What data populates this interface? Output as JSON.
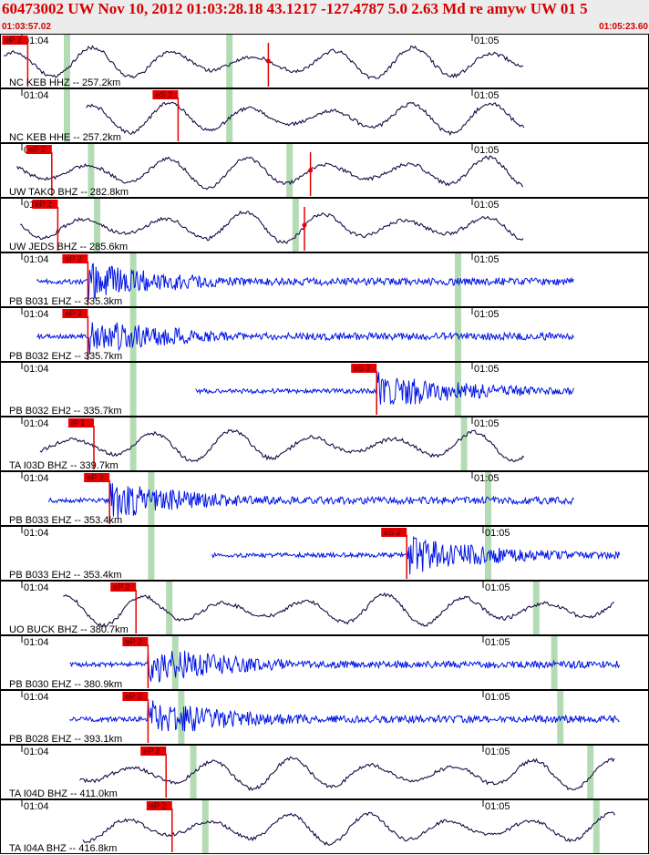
{
  "header": {
    "title": "60473002 UW Nov 10, 2012 01:03:28.18    43.1217 -127.4787  5.0 2.63 Md re amyw UW 01   5",
    "start_time": "01:03:57.02",
    "end_time": "01:05:23.60"
  },
  "colors": {
    "header_text": "#d40000",
    "header_bg": "#ececec",
    "broadband_trace": "#1e0a46",
    "short_period_trace": "#0014e6",
    "pick_flag": "#e60000",
    "theoretical_arrival": "#b4dcb4",
    "panel_border": "#000000"
  },
  "minute_labels": [
    "01:04",
    "01:05"
  ],
  "panels": [
    {
      "label": "NC KEB HHZ -- 257.2km",
      "trace": "broadband",
      "picks": [
        {
          "text": "eP 2",
          "time": 2.0
        },
        {
          "text": "",
          "time": 22.0
        }
      ],
      "markers": [
        5.0,
        18.5
      ]
    },
    {
      "label": "NC KEB HHE -- 257.2km",
      "trace": "broadband",
      "picks": [
        {
          "text": "eS 2",
          "time": 14.5
        }
      ],
      "markers": [
        5.0,
        18.5
      ]
    },
    {
      "label": "UW TAKO BHZ -- 282.8km",
      "trace": "broadband",
      "picks": [
        {
          "text": "eP 2",
          "time": 4.0
        },
        {
          "text": "",
          "time": 25.5
        }
      ],
      "markers": [
        7.0,
        23.5
      ]
    },
    {
      "label": "UW JEDS BHZ -- 285.6km",
      "trace": "broadband",
      "picks": [
        {
          "text": "eP 2",
          "time": 4.5
        },
        {
          "text": "",
          "time": 25.0
        }
      ],
      "markers": [
        7.5,
        24.0
      ]
    },
    {
      "label": "PB B031 EHZ -- 335.3km",
      "trace": "short",
      "picks": [
        {
          "text": "eP 2",
          "time": 7.0
        }
      ],
      "markers": [
        10.5,
        37.5
      ]
    },
    {
      "label": "PB B032 EHZ -- 335.7km",
      "trace": "short",
      "picks": [
        {
          "text": "eP 2",
          "time": 7.0
        }
      ],
      "markers": [
        10.5,
        37.5
      ]
    },
    {
      "label": "PB B032 EH2 -- 335.7km",
      "trace": "short",
      "picks": [
        {
          "text": "eS 2",
          "time": 31.0
        }
      ],
      "markers": [
        10.5,
        37.5
      ]
    },
    {
      "label": "TA I03D BHZ -- 339.7km",
      "trace": "broadband",
      "picks": [
        {
          "text": "iP 1",
          "time": 7.5
        }
      ],
      "markers": [
        10.5,
        38.0
      ]
    },
    {
      "label": "PB B033 EHZ -- 353.4km",
      "trace": "short",
      "picks": [
        {
          "text": "eP 2",
          "time": 8.8
        }
      ],
      "markers": [
        12.0,
        40.0
      ]
    },
    {
      "label": "PB B033 EH2 -- 353.4km",
      "trace": "short",
      "picks": [
        {
          "text": "eS 2",
          "time": 33.5
        }
      ],
      "markers": [
        12.0,
        40.0
      ]
    },
    {
      "label": "UO BUCK BHZ -- 380.7km",
      "trace": "broadband",
      "picks": [
        {
          "text": "eP 2",
          "time": 11.0
        }
      ],
      "markers": [
        13.5,
        44.0
      ]
    },
    {
      "label": "PB B030 EHZ -- 380.9km",
      "trace": "short",
      "picks": [
        {
          "text": "eP 2",
          "time": 12.0
        }
      ],
      "markers": [
        14.0,
        45.5
      ]
    },
    {
      "label": "PB B028 EHZ -- 393.1km",
      "trace": "short",
      "picks": [
        {
          "text": "eP 2",
          "time": 12.0
        }
      ],
      "markers": [
        14.5,
        46.0
      ]
    },
    {
      "label": "TA I04D BHZ -- 411.0km",
      "trace": "broadband",
      "picks": [
        {
          "text": "eP 2",
          "time": 13.5
        }
      ],
      "markers": [
        15.5,
        48.5
      ]
    },
    {
      "label": "TA I04A BHZ -- 416.8km",
      "trace": "broadband",
      "picks": [
        {
          "text": "eP 2",
          "time": 14.0
        }
      ],
      "markers": [
        16.5,
        49.0
      ]
    }
  ]
}
